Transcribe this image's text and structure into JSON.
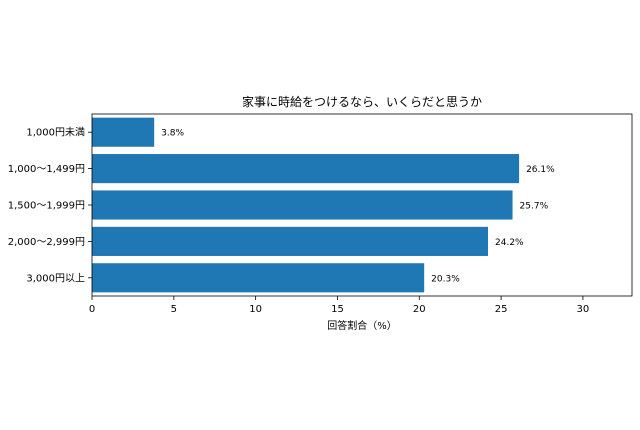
{
  "chart_data": {
    "type": "bar",
    "orientation": "horizontal",
    "title": "家事に時給をつけるなら、いくらだと思うか",
    "xlabel": "回答割合（%）",
    "ylabel": "",
    "categories": [
      "1,000円未満",
      "1,000〜1,499円",
      "1,500〜1,999円",
      "2,000〜2,999円",
      "3,000円以上"
    ],
    "values": [
      3.8,
      26.1,
      25.7,
      24.2,
      20.3
    ],
    "value_labels": [
      "3.8%",
      "26.1%",
      "25.7%",
      "24.2%",
      "20.3%"
    ],
    "xlim": [
      0,
      33
    ],
    "xticks": [
      0,
      5,
      10,
      15,
      20,
      25,
      30
    ],
    "grid": false,
    "legend": "none",
    "bar_color": "#1f77b4"
  }
}
